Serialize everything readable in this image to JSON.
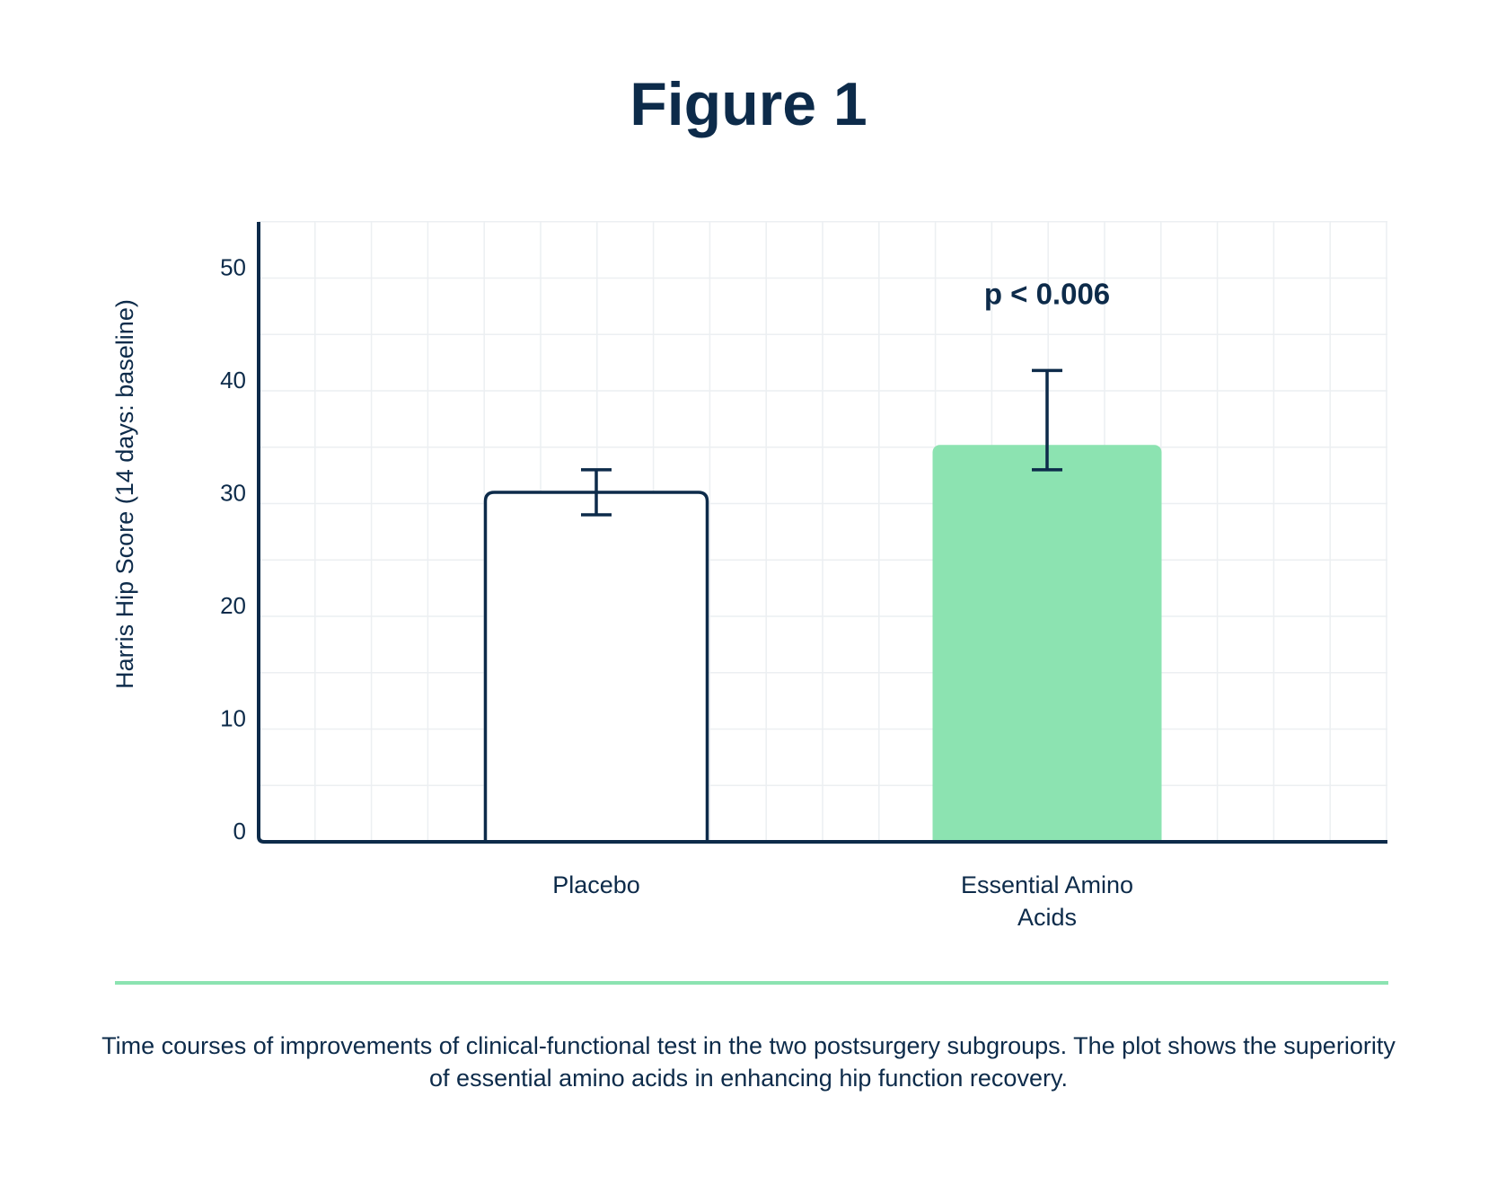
{
  "figure": {
    "title": "Figure 1",
    "caption": "Time courses of improvements of clinical-functional test in the two postsurgery subgroups. The plot shows the superiority of essential amino acids in enhancing hip function recovery."
  },
  "colors": {
    "text": "#0d2b4a",
    "axis": "#0d2b4a",
    "grid": "#eceff2",
    "placebo_fill": "#ffffff",
    "eaa_fill": "#8ce3b1",
    "divider": "#8ce3b1"
  },
  "chart_data": {
    "type": "bar",
    "title": "Figure 1",
    "xlabel": "",
    "ylabel": "Harris Hip Score (14 days: baseline)",
    "ylim": [
      0,
      55
    ],
    "yticks": [
      0,
      10,
      20,
      30,
      40,
      50
    ],
    "grid": true,
    "categories": [
      {
        "lines": [
          "Placebo"
        ]
      },
      {
        "lines": [
          "Essential Amino",
          "Acids"
        ]
      }
    ],
    "values": [
      31,
      35.2
    ],
    "error_bars": [
      {
        "low": 29,
        "high": 33
      },
      {
        "low": 33,
        "high": 41.8
      }
    ],
    "annotations": [
      {
        "text": "p < 0.006",
        "category_index": 1,
        "y": 48.5
      }
    ]
  }
}
